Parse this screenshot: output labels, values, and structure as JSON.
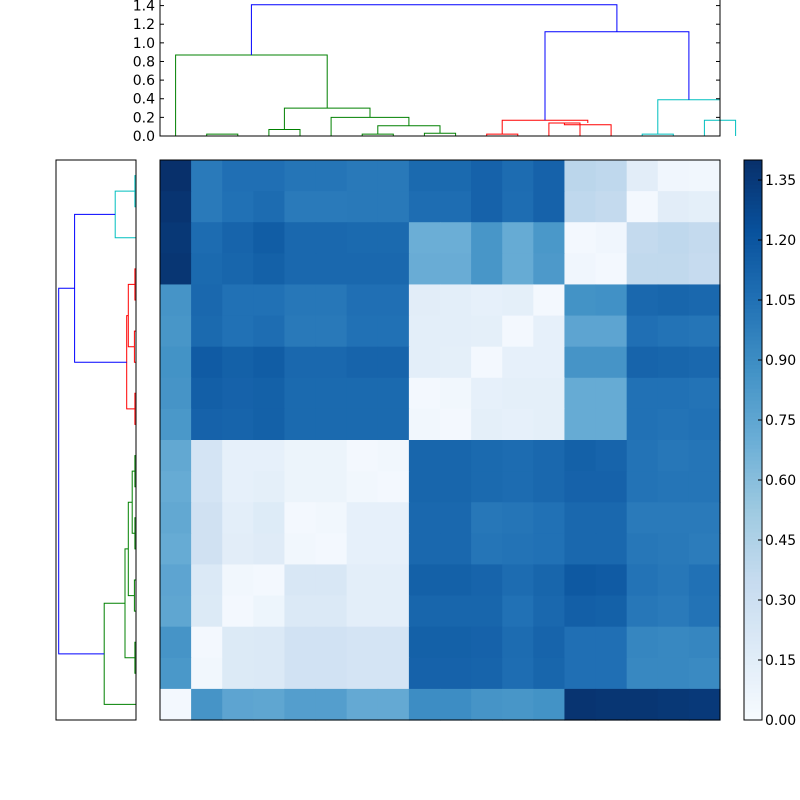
{
  "chart_data": [
    {
      "type": "dendrogram",
      "orientation": "top",
      "yticks": [
        "0.0",
        "0.2",
        "0.4",
        "0.6",
        "0.8",
        "1.0",
        "1.2",
        "1.4"
      ],
      "ylim": [
        0,
        1.46
      ],
      "n_leaves": 18,
      "colors": {
        "green": "#008000",
        "red": "#ff0000",
        "cyan": "#00bfbf",
        "blue": "#0000ff"
      },
      "links": [
        {
          "x": [
            1.5,
            2.5
          ],
          "ylo": [
            0,
            0
          ],
          "h": 0.02,
          "color": "green"
        },
        {
          "x": [
            3.5,
            4.5
          ],
          "ylo": [
            0,
            0
          ],
          "h": 0.07,
          "color": "green"
        },
        {
          "x": [
            6.5,
            7.5
          ],
          "ylo": [
            0,
            0
          ],
          "h": 0.02,
          "color": "green"
        },
        {
          "x": [
            8.5,
            9.5
          ],
          "ylo": [
            0,
            0
          ],
          "h": 0.03,
          "color": "green"
        },
        {
          "x": [
            7.0,
            9.0
          ],
          "ylo": [
            0.02,
            0.03
          ],
          "h": 0.11,
          "color": "green"
        },
        {
          "x": [
            5.5,
            8.0
          ],
          "ylo": [
            0,
            0.11
          ],
          "h": 0.2,
          "color": "green"
        },
        {
          "x": [
            4.0,
            6.75
          ],
          "ylo": [
            0.07,
            0.2
          ],
          "h": 0.3,
          "color": "green"
        },
        {
          "x": [
            0.5,
            5.375
          ],
          "ylo": [
            0,
            0.3
          ],
          "h": 0.87,
          "color": "green"
        },
        {
          "x": [
            10.5,
            11.5
          ],
          "ylo": [
            0,
            0
          ],
          "h": 0.02,
          "color": "red"
        },
        {
          "x": [
            12.5,
            13.5
          ],
          "ylo": [
            0,
            0
          ],
          "h": 0.14,
          "color": "red"
        },
        {
          "x": [
            13.0,
            14.5
          ],
          "ylo": [
            0.14,
            0
          ],
          "h": 0.12,
          "color": "red"
        },
        {
          "x": [
            11.0,
            13.75
          ],
          "ylo": [
            0.02,
            0.14
          ],
          "h": 0.17,
          "color": "red"
        },
        {
          "x": [
            15.5,
            16.5
          ],
          "ylo": [
            0,
            0
          ],
          "h": 0.02,
          "color": "cyan"
        },
        {
          "x": [
            17.5,
            18.5
          ],
          "ylo": [
            0,
            0
          ],
          "h": 0.17,
          "color": "cyan"
        },
        {
          "x": [
            16.0,
            18.0
          ],
          "ylo": [
            0.02,
            0.17
          ],
          "h": 0.39,
          "color": "cyan"
        },
        {
          "x": [
            12.375,
            17.0
          ],
          "ylo": [
            0.17,
            0.39
          ],
          "h": 1.12,
          "color": "blue"
        },
        {
          "x": [
            2.9375,
            14.6875
          ],
          "ylo": [
            0.87,
            1.12
          ],
          "h": 1.41,
          "color": "blue"
        }
      ]
    },
    {
      "type": "dendrogram",
      "orientation": "left",
      "n_leaves": 18,
      "xlim": [
        0,
        1.46
      ],
      "colors": {
        "green": "#008000",
        "red": "#ff0000",
        "cyan": "#00bfbf",
        "blue": "#0000ff"
      },
      "links": [
        {
          "y": [
            1,
            2
          ],
          "lo": [
            0,
            0
          ],
          "h": 0.02,
          "color": "cyan"
        },
        {
          "y": [
            1.5,
            3
          ],
          "lo": [
            0.02,
            0
          ],
          "h": 0.38,
          "color": "cyan"
        },
        {
          "y": [
            4,
            5
          ],
          "lo": [
            0,
            0
          ],
          "h": 0.02,
          "color": "red"
        },
        {
          "y": [
            6,
            7
          ],
          "lo": [
            0,
            0
          ],
          "h": 0.03,
          "color": "red"
        },
        {
          "y": [
            4.5,
            6.5
          ],
          "lo": [
            0.02,
            0.03
          ],
          "h": 0.14,
          "color": "red"
        },
        {
          "y": [
            8,
            9
          ],
          "lo": [
            0,
            0
          ],
          "h": 0.02,
          "color": "red"
        },
        {
          "y": [
            5.5,
            8.5
          ],
          "lo": [
            0.14,
            0.02
          ],
          "h": 0.17,
          "color": "red"
        },
        {
          "y": [
            2.25,
            7.0
          ],
          "lo": [
            0.38,
            0.17
          ],
          "h": 1.12,
          "color": "blue"
        },
        {
          "y": [
            10,
            11
          ],
          "lo": [
            0,
            0
          ],
          "h": 0.02,
          "color": "green"
        },
        {
          "y": [
            12,
            13
          ],
          "lo": [
            0,
            0
          ],
          "h": 0.02,
          "color": "green"
        },
        {
          "y": [
            10.5,
            12.5
          ],
          "lo": [
            0.02,
            0.02
          ],
          "h": 0.07,
          "color": "green"
        },
        {
          "y": [
            14,
            15
          ],
          "lo": [
            0,
            0
          ],
          "h": 0.03,
          "color": "green"
        },
        {
          "y": [
            11.5,
            14.5
          ],
          "lo": [
            0.07,
            0.03
          ],
          "h": 0.14,
          "color": "green"
        },
        {
          "y": [
            16,
            17
          ],
          "lo": [
            0,
            0
          ],
          "h": 0.02,
          "color": "green"
        },
        {
          "y": [
            13.0,
            16.5
          ],
          "lo": [
            0.14,
            0.02
          ],
          "h": 0.2,
          "color": "green"
        },
        {
          "y": [
            14.75,
            18
          ],
          "lo": [
            0.2,
            0
          ],
          "h": 0.58,
          "color": "green"
        },
        {
          "y": [
            4.625,
            16.375
          ],
          "lo": [
            1.12,
            0.58
          ],
          "h": 1.41,
          "color": "blue"
        }
      ]
    },
    {
      "type": "heatmap",
      "rows": 18,
      "cols": 18,
      "vmin": 0,
      "vmax": 1.4,
      "colormap": "Blues",
      "values": [
        [
          1.4,
          1.0,
          1.06,
          1.06,
          1.03,
          1.03,
          1.01,
          1.01,
          1.09,
          1.09,
          1.13,
          1.08,
          1.13,
          0.4,
          0.38,
          0.15,
          0.05,
          0.04
        ],
        [
          1.38,
          1.0,
          1.05,
          1.08,
          1.0,
          1.0,
          1.01,
          1.01,
          1.07,
          1.07,
          1.13,
          1.07,
          1.13,
          0.38,
          0.36,
          0.03,
          0.15,
          0.13
        ],
        [
          1.36,
          1.08,
          1.12,
          1.16,
          1.1,
          1.1,
          1.09,
          1.09,
          0.7,
          0.7,
          0.85,
          0.72,
          0.84,
          0.03,
          0.05,
          0.36,
          0.38,
          0.36
        ],
        [
          1.37,
          1.09,
          1.11,
          1.14,
          1.1,
          1.1,
          1.1,
          1.1,
          0.71,
          0.71,
          0.85,
          0.72,
          0.83,
          0.05,
          0.03,
          0.37,
          0.37,
          0.35
        ],
        [
          0.86,
          1.1,
          1.05,
          1.05,
          1.02,
          1.02,
          1.06,
          1.06,
          0.15,
          0.14,
          0.12,
          0.13,
          0.03,
          0.87,
          0.88,
          1.1,
          1.11,
          1.1
        ],
        [
          0.85,
          1.09,
          1.05,
          1.07,
          1.01,
          1.01,
          1.05,
          1.05,
          0.14,
          0.14,
          0.13,
          0.03,
          0.12,
          0.76,
          0.76,
          1.06,
          1.04,
          1.03
        ],
        [
          0.87,
          1.17,
          1.14,
          1.16,
          1.1,
          1.1,
          1.12,
          1.12,
          0.14,
          0.13,
          0.03,
          0.12,
          0.12,
          0.86,
          0.86,
          1.12,
          1.11,
          1.1
        ],
        [
          0.86,
          1.15,
          1.13,
          1.14,
          1.09,
          1.09,
          1.09,
          1.09,
          0.03,
          0.04,
          0.12,
          0.13,
          0.13,
          0.72,
          0.72,
          1.05,
          1.05,
          1.04
        ],
        [
          0.84,
          1.13,
          1.12,
          1.14,
          1.09,
          1.09,
          1.09,
          1.09,
          0.04,
          0.03,
          0.13,
          0.12,
          0.13,
          0.72,
          0.72,
          1.05,
          1.04,
          1.05
        ],
        [
          0.74,
          0.25,
          0.12,
          0.12,
          0.08,
          0.08,
          0.03,
          0.04,
          1.11,
          1.11,
          1.09,
          1.08,
          1.1,
          1.14,
          1.12,
          1.04,
          1.02,
          1.03
        ],
        [
          0.72,
          0.25,
          0.12,
          0.13,
          0.08,
          0.08,
          0.04,
          0.03,
          1.11,
          1.11,
          1.09,
          1.08,
          1.1,
          1.13,
          1.13,
          1.04,
          1.03,
          1.03
        ],
        [
          0.74,
          0.28,
          0.14,
          0.18,
          0.03,
          0.04,
          0.12,
          0.12,
          1.1,
          1.1,
          1.02,
          1.03,
          1.05,
          1.1,
          1.1,
          1.0,
          1.0,
          1.0
        ],
        [
          0.72,
          0.28,
          0.15,
          0.17,
          0.04,
          0.03,
          0.12,
          0.12,
          1.1,
          1.1,
          1.03,
          1.04,
          1.05,
          1.1,
          1.1,
          1.02,
          1.01,
          0.99
        ],
        [
          0.76,
          0.2,
          0.04,
          0.03,
          0.22,
          0.22,
          0.14,
          0.14,
          1.14,
          1.14,
          1.12,
          1.08,
          1.11,
          1.18,
          1.17,
          1.04,
          1.02,
          1.05
        ],
        [
          0.75,
          0.19,
          0.03,
          0.07,
          0.2,
          0.2,
          0.14,
          0.14,
          1.11,
          1.11,
          1.11,
          1.05,
          1.1,
          1.15,
          1.14,
          1.02,
          1.0,
          1.04
        ],
        [
          0.86,
          0.03,
          0.19,
          0.2,
          0.27,
          0.27,
          0.25,
          0.25,
          1.14,
          1.14,
          1.13,
          1.08,
          1.12,
          1.06,
          1.06,
          0.94,
          0.93,
          0.94
        ],
        [
          0.84,
          0.04,
          0.19,
          0.2,
          0.27,
          0.27,
          0.25,
          0.25,
          1.13,
          1.13,
          1.12,
          1.07,
          1.11,
          1.06,
          1.06,
          0.93,
          0.93,
          0.92
        ],
        [
          0.03,
          0.86,
          0.76,
          0.75,
          0.8,
          0.8,
          0.73,
          0.73,
          0.9,
          0.9,
          0.86,
          0.85,
          0.87,
          1.38,
          1.37,
          1.37,
          1.36,
          1.35
        ]
      ]
    },
    {
      "type": "colorbar",
      "vmin": 0,
      "vmax": 1.4,
      "ticks": [
        0,
        0.15,
        0.3,
        0.45,
        0.6,
        0.75,
        0.9,
        1.05,
        1.2,
        1.35
      ],
      "tick_labels": [
        "0.00",
        "0.15",
        "0.30",
        "0.45",
        "0.60",
        "0.75",
        "0.90",
        "1.05",
        "1.20",
        "1.35"
      ],
      "colormap": "Blues"
    }
  ]
}
